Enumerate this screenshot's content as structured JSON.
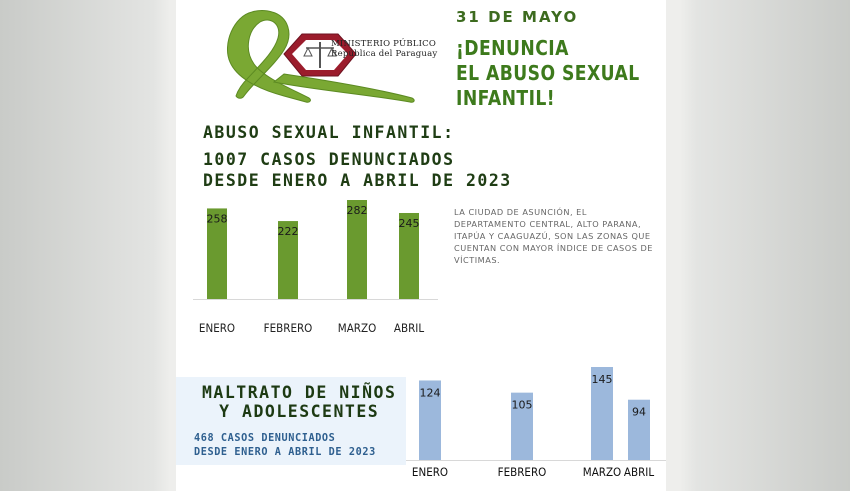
{
  "header": {
    "date": "31 DE MAYO",
    "headline_lines": [
      "¡DENUNCIA",
      "EL ABUSO SEXUAL",
      "INFANTIL!"
    ],
    "ministry_lines": [
      "MINISTERIO PÚBLICO",
      "República del Paraguay"
    ]
  },
  "abuse_section": {
    "title": "ABUSO SEXUAL INFANTIL:",
    "subtitle_lines": [
      "1007 CASOS DENUNCIADOS",
      "DESDE ENERO A ABRIL DE 2023"
    ],
    "note": "LA CIUDAD DE ASUNCIÓN, EL DEPARTAMENTO CENTRAL, ALTO PARANA, ITAPÚA Y CAAGUAZÚ, SON LAS ZONAS QUE CUENTAN CON MAYOR ÍNDICE DE CASOS DE VÍCTIMAS."
  },
  "maltrato_section": {
    "title_lines": [
      "MALTRATO DE NIÑOS",
      "Y ADOLESCENTES"
    ],
    "subtitle_lines": [
      "468 CASOS DENUNCIADOS",
      "DESDE ENERO A ABRIL DE 2023"
    ]
  },
  "colors": {
    "green_bar": "#6a9a2f",
    "blue_bar": "#9cb8dc",
    "title_green": "#3d7a1c",
    "ribbon_green": "#7aa833",
    "seal_red": "#9b1c2c"
  },
  "chart_data": [
    {
      "type": "bar",
      "categories": [
        "ENERO",
        "FEBRERO",
        "MARZO",
        "ABRIL"
      ],
      "values": [
        258,
        222,
        282,
        245
      ],
      "title": "ABUSO SEXUAL INFANTIL:",
      "xlabel": "",
      "ylabel": "",
      "grid": false
    },
    {
      "type": "bar",
      "categories": [
        "ENERO",
        "FEBRERO",
        "MARZO",
        "ABRIL"
      ],
      "values": [
        124,
        105,
        145,
        94
      ],
      "title": "MALTRATO DE NIÑOS Y ADOLESCENTES",
      "xlabel": "",
      "ylabel": "",
      "grid": false
    }
  ]
}
